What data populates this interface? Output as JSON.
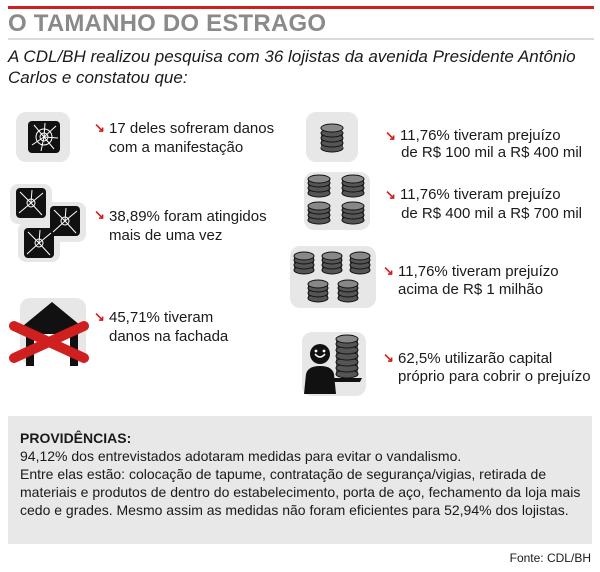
{
  "title": "O TAMANHO DO ESTRAGO",
  "intro": "A CDL/BH realizou pesquisa com 36 lojistas da avenida Presidente Antônio Carlos e constatou que:",
  "left_items": [
    {
      "icon": "broken-glass-icon",
      "line1": "17 deles sofreram danos",
      "line2": "com a manifestação"
    },
    {
      "icon": "multiple-broken-glass-icon",
      "line1": "38,89% foram atingidos",
      "line2": "mais de uma vez"
    },
    {
      "icon": "crossed-out-house-icon",
      "line1": "45,71% tiveram",
      "line2": "danos na fachada"
    }
  ],
  "right_items": [
    {
      "icon": "coin-stack-icon",
      "line1": "11,76% tiveram prejuízo",
      "line2": "de R$ 100 mil a R$ 400 mil"
    },
    {
      "icon": "coin-stacks-icon",
      "line1": "11,76% tiveram prejuízo",
      "line2": "de R$ 400 mil a R$ 700 mil"
    },
    {
      "icon": "many-coin-stacks-icon",
      "line1": "11,76% tiveram prejuízo",
      "line2": "acima de R$ 1 milhão"
    },
    {
      "icon": "man-with-coins-icon",
      "line1": "62,5% utilizarão capital",
      "line2": "próprio para cobrir o prejuízo"
    }
  ],
  "providencias": {
    "title": "PROVIDÊNCIAS:",
    "line1": "94,12% dos entrevistados adotaram medidas para evitar o vandalismo.",
    "line2": "Entre elas estão: colocação de tapume, contratação de segurança/vigias, retirada de materiais e produtos de dentro do estabelecimento, porta de aço, fechamento da loja mais cedo e grades. Mesmo assim as medidas não foram eficientes para 52,94% dos lojistas."
  },
  "source": "Fonte: CDL/BH",
  "colors": {
    "accent": "#d01f1f",
    "title": "#8a8a8a",
    "panel": "#e8e8e8"
  }
}
